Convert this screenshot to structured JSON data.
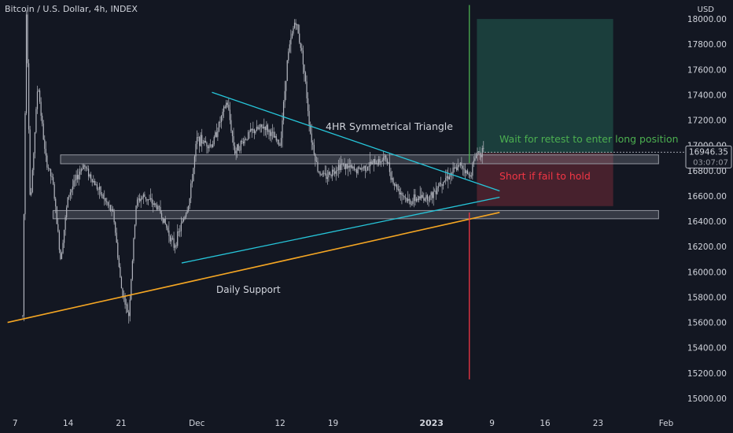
{
  "header": {
    "symbol": "Bitcoin / U.S. Dollar, 4h, INDEX"
  },
  "colors": {
    "background": "#131722",
    "candle": "#b2b5be",
    "axis_text": "#d1d4dc",
    "triangle": "#26c6da",
    "support": "#f5a623",
    "zone": "#9598a1",
    "long_box": "#1f4c45",
    "short_box": "#5a2531",
    "green": "#4caf50",
    "red": "#f23645"
  },
  "chart_data": {
    "type": "candlestick",
    "title": "",
    "ylabel": "USD",
    "ylim": [
      14850,
      18150
    ],
    "y_ticks": [
      15000,
      15200,
      15400,
      15600,
      15800,
      16000,
      16200,
      16400,
      16600,
      16800,
      17000,
      17200,
      17400,
      17600,
      17800,
      18000
    ],
    "y_tick_labels": [
      "15000.00",
      "15200.00",
      "15400.00",
      "15600.00",
      "15800.00",
      "16000.00",
      "16200.00",
      "16400.00",
      "16600.00",
      "16800.00",
      "17000.00",
      "17200.00",
      "17400.00",
      "17600.00",
      "17800.00",
      "18000.00"
    ],
    "x_range": [
      "2022-11-05",
      "2023-02-01"
    ],
    "x_ticks": [
      {
        "date": "2022-11-07",
        "label": "7"
      },
      {
        "date": "2022-11-14",
        "label": "14"
      },
      {
        "date": "2022-11-21",
        "label": "21"
      },
      {
        "date": "2022-12-01",
        "label": "Dec"
      },
      {
        "date": "2022-12-12",
        "label": "12"
      },
      {
        "date": "2022-12-19",
        "label": "19"
      },
      {
        "date": "2023-01-01",
        "label": "2023"
      },
      {
        "date": "2023-01-09",
        "label": "9"
      },
      {
        "date": "2023-01-16",
        "label": "16"
      },
      {
        "date": "2023-01-23",
        "label": "23"
      },
      {
        "date": "2023-02-01",
        "label": "Feb"
      }
    ],
    "grid": false,
    "price_path": [
      {
        "date": "2022-11-08",
        "price": 15650
      },
      {
        "date": "2022-11-08T12:00",
        "price": 18150
      },
      {
        "date": "2022-11-09",
        "price": 16500
      },
      {
        "date": "2022-11-10",
        "price": 17500
      },
      {
        "date": "2022-11-11",
        "price": 16900
      },
      {
        "date": "2022-11-12",
        "price": 16700
      },
      {
        "date": "2022-11-13",
        "price": 16100
      },
      {
        "date": "2022-11-14",
        "price": 16600
      },
      {
        "date": "2022-11-16",
        "price": 16850
      },
      {
        "date": "2022-11-18",
        "price": 16650
      },
      {
        "date": "2022-11-20",
        "price": 16450
      },
      {
        "date": "2022-11-21",
        "price": 15880
      },
      {
        "date": "2022-11-22",
        "price": 15650
      },
      {
        "date": "2022-11-23",
        "price": 16550
      },
      {
        "date": "2022-11-24",
        "price": 16600
      },
      {
        "date": "2022-11-26",
        "price": 16500
      },
      {
        "date": "2022-11-28",
        "price": 16200
      },
      {
        "date": "2022-11-30",
        "price": 16550
      },
      {
        "date": "2022-12-01",
        "price": 17050
      },
      {
        "date": "2022-12-03",
        "price": 17000
      },
      {
        "date": "2022-12-05",
        "price": 17350
      },
      {
        "date": "2022-12-06",
        "price": 16950
      },
      {
        "date": "2022-12-08",
        "price": 17100
      },
      {
        "date": "2022-12-10",
        "price": 17150
      },
      {
        "date": "2022-12-12",
        "price": 17000
      },
      {
        "date": "2022-12-13",
        "price": 17700
      },
      {
        "date": "2022-12-14",
        "price": 18000
      },
      {
        "date": "2022-12-15",
        "price": 17700
      },
      {
        "date": "2022-12-16",
        "price": 17100
      },
      {
        "date": "2022-12-17",
        "price": 16800
      },
      {
        "date": "2022-12-18",
        "price": 16750
      },
      {
        "date": "2022-12-20",
        "price": 16850
      },
      {
        "date": "2022-12-22",
        "price": 16800
      },
      {
        "date": "2022-12-24",
        "price": 16850
      },
      {
        "date": "2022-12-26",
        "price": 16900
      },
      {
        "date": "2022-12-27",
        "price": 16700
      },
      {
        "date": "2022-12-29",
        "price": 16550
      },
      {
        "date": "2022-12-30",
        "price": 16580
      },
      {
        "date": "2023-01-01",
        "price": 16600
      },
      {
        "date": "2023-01-02",
        "price": 16700
      },
      {
        "date": "2023-01-04",
        "price": 16800
      },
      {
        "date": "2023-01-05",
        "price": 16850
      },
      {
        "date": "2023-01-06",
        "price": 16750
      },
      {
        "date": "2023-01-07",
        "price": 16950
      },
      {
        "date": "2023-01-08",
        "price": 16946
      }
    ],
    "current_price": {
      "price": 16946.35,
      "label": "16946.35",
      "countdown": "03:07:07"
    },
    "drawings": {
      "triangle_upper": {
        "label": "4HR Symmetrical Triangle",
        "from": {
          "date": "2022-12-03",
          "price": 17420
        },
        "to": {
          "date": "2023-01-10",
          "price": 16640
        }
      },
      "triangle_lower": {
        "from": {
          "date": "2022-11-29",
          "price": 16070
        },
        "to": {
          "date": "2023-01-10",
          "price": 16590
        }
      },
      "daily_support": {
        "label": "Daily Support",
        "from": {
          "date": "2022-11-06",
          "price": 15600
        },
        "to": {
          "date": "2023-01-10",
          "price": 16470
        }
      },
      "resistance_zone": {
        "from": {
          "date": "2022-11-13",
          "price": 16855
        },
        "to": {
          "date": "2023-01-31",
          "price": 16925
        }
      },
      "support_zone": {
        "from": {
          "date": "2022-11-12",
          "price": 16420
        },
        "to": {
          "date": "2023-01-31",
          "price": 16485
        }
      },
      "long_box": {
        "label": "Wait for retest to enter long position",
        "from": {
          "date": "2023-01-07",
          "price": 16940
        },
        "to": {
          "date": "2023-01-25",
          "price": 18000
        }
      },
      "short_box": {
        "label": "Short if fail to hold",
        "from": {
          "date": "2023-01-07",
          "price": 16520
        },
        "to": {
          "date": "2023-01-25",
          "price": 16940
        }
      },
      "green_line": {
        "date": "2023-01-06",
        "from_price": 16860,
        "to_price": 18110
      },
      "red_line": {
        "date": "2023-01-06",
        "from_price": 15150,
        "to_price": 16470
      }
    }
  }
}
